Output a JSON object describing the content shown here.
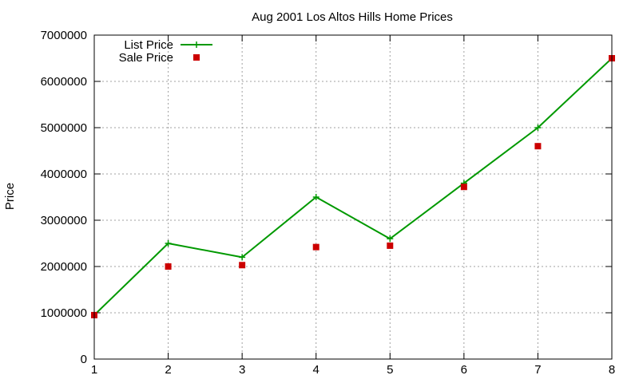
{
  "chart_data": {
    "type": "line",
    "title": "Aug 2001 Los Altos Hills Home Prices",
    "xlabel": "",
    "ylabel": "Price",
    "xlim": [
      1,
      8
    ],
    "ylim": [
      0,
      7000000
    ],
    "x_ticks": [
      1,
      2,
      3,
      4,
      5,
      6,
      7,
      8
    ],
    "y_ticks": [
      0,
      1000000,
      2000000,
      3000000,
      4000000,
      5000000,
      6000000,
      7000000
    ],
    "grid": true,
    "legend_position": "top-left",
    "series": [
      {
        "name": "List Price",
        "style": "linespoints",
        "marker": "plus",
        "color": "#009900",
        "x": [
          1,
          2,
          3,
          4,
          5,
          6,
          7,
          8
        ],
        "y": [
          950000,
          2500000,
          2200000,
          3500000,
          2600000,
          3800000,
          5000000,
          6500000
        ]
      },
      {
        "name": "Sale Price",
        "style": "points",
        "marker": "square",
        "color": "#cc0000",
        "x": [
          1,
          2,
          3,
          4,
          5,
          6,
          7,
          8
        ],
        "y": [
          950000,
          2000000,
          2030000,
          2420000,
          2450000,
          3720000,
          4600000,
          6500000
        ]
      }
    ]
  }
}
